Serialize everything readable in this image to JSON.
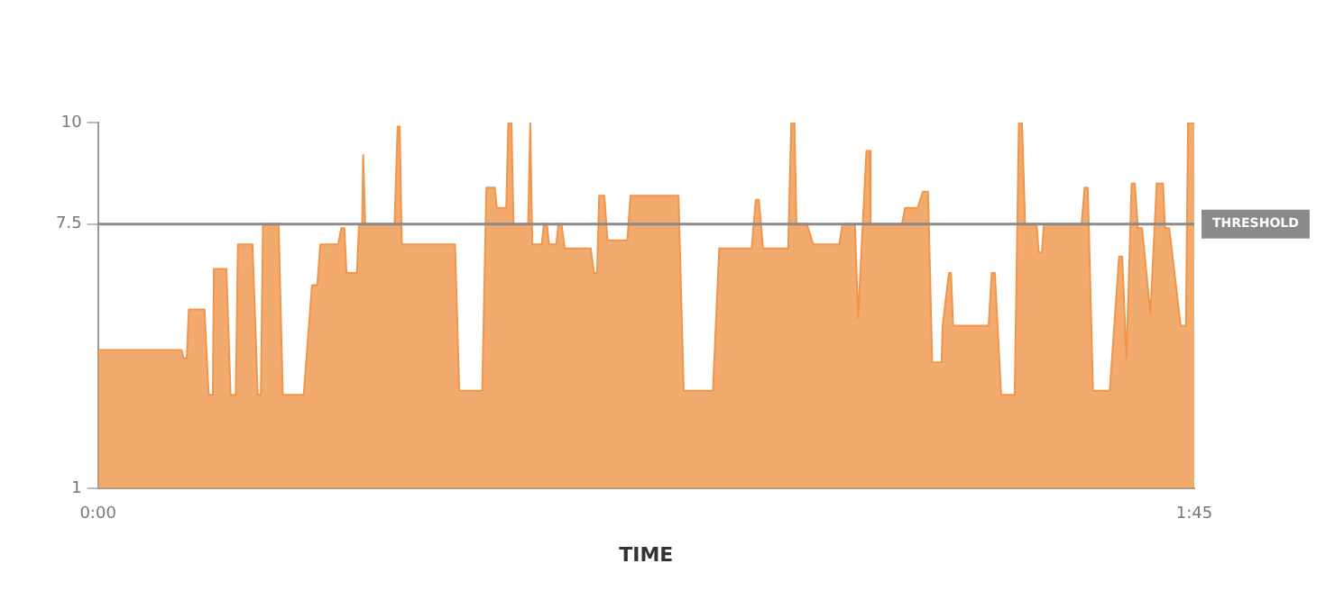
{
  "chart_data": {
    "type": "area",
    "xlabel": "TIME",
    "series": [
      {
        "color": "#f0954a",
        "x": [
          0,
          8.0,
          8.2,
          8.5,
          8.7,
          10.2,
          10.6,
          11.0,
          11.1,
          12.3,
          12.7,
          13.2,
          13.4,
          14.8,
          15.3,
          15.6,
          15.8,
          17.3,
          17.7,
          19.7,
          20.5,
          21.0,
          21.3,
          23.0,
          23.3,
          23.6,
          23.8,
          24.8,
          25.0,
          25.3,
          25.4,
          25.6,
          28.4,
          28.7,
          28.9,
          29.1,
          34.2,
          34.6,
          36.8,
          37.2,
          38.0,
          38.2,
          39.1,
          39.3,
          39.6,
          39.8,
          41.2,
          41.4,
          41.6,
          42.5,
          42.7,
          43.0,
          43.2,
          43.9,
          44.1,
          44.4,
          44.7,
          47.2,
          47.5,
          47.8,
          48.0,
          48.5,
          48.8,
          50.7,
          51.0,
          55.6,
          56.1,
          58.9,
          59.5,
          62.6,
          63.0,
          63.3,
          63.7,
          66.1,
          66.4,
          66.7,
          66.9,
          67.9,
          68.5,
          71.0,
          71.3,
          72.5,
          72.8,
          73.6,
          73.9,
          74.0,
          77.0,
          77.3,
          78.5,
          79.0,
          79.5,
          79.9,
          80.8,
          80.9,
          81.5,
          81.7,
          81.9,
          85.3,
          85.6,
          85.9,
          86.5,
          87.8,
          88.2,
          88.5,
          88.8,
          89.9,
          90.1,
          90.4,
          90.6,
          94.2,
          94.5,
          94.8,
          95.3,
          96.9,
          97.8,
          98.1,
          98.5,
          99.0,
          99.3,
          99.6,
          100.0,
          100.8,
          101.4,
          102.0,
          102.2,
          102.6,
          103.7,
          104.2,
          104.4,
          105
        ],
        "values": [
          4.4,
          4.4,
          4.2,
          4.2,
          5.4,
          5.4,
          3.3,
          3.3,
          6.4,
          6.4,
          3.3,
          3.3,
          7.0,
          7.0,
          3.3,
          3.3,
          7.5,
          7.5,
          3.3,
          3.3,
          6.0,
          6.0,
          7.0,
          7.0,
          7.4,
          7.4,
          6.3,
          6.3,
          7.5,
          7.5,
          9.2,
          7.5,
          7.5,
          9.9,
          9.9,
          7.0,
          7.0,
          3.4,
          3.4,
          8.4,
          8.4,
          7.9,
          7.9,
          10,
          10,
          7.5,
          7.5,
          10,
          7.0,
          7.0,
          7.5,
          7.5,
          7.0,
          7.0,
          7.5,
          7.5,
          6.9,
          6.9,
          6.3,
          6.3,
          8.2,
          8.2,
          7.1,
          7.1,
          8.2,
          8.2,
          3.4,
          3.4,
          6.9,
          6.9,
          8.1,
          8.1,
          6.9,
          6.9,
          10,
          10,
          7.5,
          7.5,
          7.0,
          7.0,
          7.5,
          7.5,
          5.2,
          9.3,
          9.3,
          7.5,
          7.5,
          7.9,
          7.9,
          8.3,
          8.3,
          4.1,
          4.1,
          5.0,
          6.3,
          6.3,
          5.0,
          5.0,
          6.3,
          6.3,
          3.3,
          3.3,
          10,
          10,
          7.5,
          7.5,
          6.8,
          6.8,
          7.5,
          7.5,
          8.4,
          8.4,
          3.4,
          3.4,
          6.7,
          6.7,
          4.2,
          8.5,
          8.5,
          7.4,
          7.4,
          5.3,
          8.5,
          8.5,
          7.4,
          7.4,
          5.0,
          5.0,
          10,
          10
        ]
      }
    ],
    "xlim": [
      0,
      105
    ],
    "xticks": [
      {
        "value": 0,
        "label": "0:00"
      },
      {
        "value": 105,
        "label": "1:45"
      }
    ],
    "ylim": [
      1,
      10
    ],
    "yticks": [
      1,
      7.5,
      10
    ],
    "ref_lines": [
      {
        "axis": "y",
        "value": 7.5,
        "label": "THRESHOLD",
        "color": "#8a8a8a"
      }
    ],
    "grid": false,
    "legend": false,
    "marker": "none",
    "line_style": "solid"
  }
}
